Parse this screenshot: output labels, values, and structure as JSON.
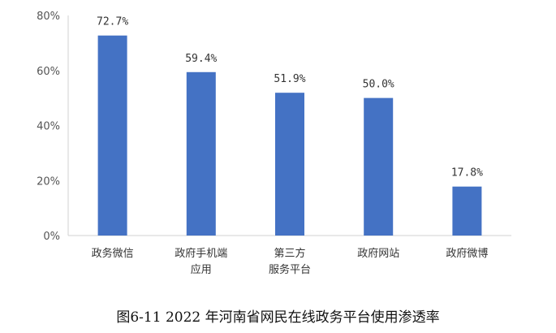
{
  "chart_data": {
    "type": "bar",
    "title": "图6-11 2022 年河南省网民在线政务平台使用渗透率",
    "categories": [
      [
        "政务微信"
      ],
      [
        "政府手机端",
        "应用"
      ],
      [
        "第三方",
        "服务平台"
      ],
      [
        "政府网站"
      ],
      [
        "政府微博"
      ]
    ],
    "values": [
      72.7,
      59.4,
      51.9,
      50.0,
      17.8
    ],
    "value_labels": [
      "72.7%",
      "59.4%",
      "51.9%",
      "50.0%",
      "17.8%"
    ],
    "ylim": [
      0,
      80
    ],
    "yticks": [
      0,
      20,
      40,
      60,
      80
    ],
    "ytick_labels": [
      "0%",
      "20%",
      "40%",
      "60%",
      "80%"
    ],
    "bar_color": "#4472C4",
    "grid": false,
    "legend": "none"
  }
}
